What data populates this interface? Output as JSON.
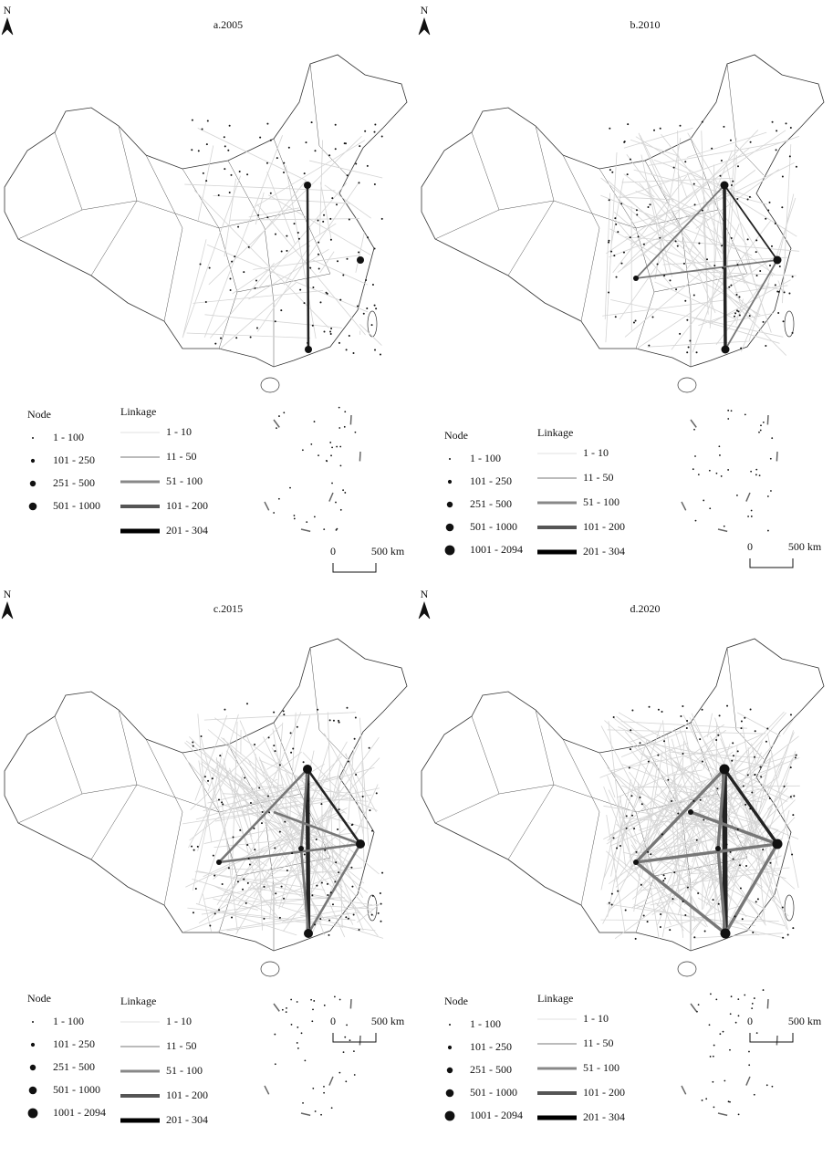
{
  "panels": [
    {
      "title": "a.2005",
      "north": "N",
      "node_legend": {
        "title": "Node",
        "items": [
          "1 - 100",
          "101 - 250",
          "251 - 500",
          "501 - 1000"
        ]
      },
      "linkage_legend": {
        "title": "Linkage",
        "items": [
          "1 - 10",
          "11 - 50",
          "51 - 100",
          "101 - 200",
          "201 - 304"
        ]
      },
      "scale": {
        "start": "0",
        "end": "500 km"
      }
    },
    {
      "title": "b.2010",
      "north": "N",
      "node_legend": {
        "title": "Node",
        "items": [
          "1 - 100",
          "101 - 250",
          "251 - 500",
          "501 - 1000",
          "1001 - 2094"
        ]
      },
      "linkage_legend": {
        "title": "Linkage",
        "items": [
          "1 - 10",
          "11 - 50",
          "51 - 100",
          "101 - 200",
          "201 - 304"
        ]
      },
      "scale": {
        "start": "0",
        "end": "500 km"
      }
    },
    {
      "title": "c.2015",
      "north": "N",
      "node_legend": {
        "title": "Node",
        "items": [
          "1 - 100",
          "101 - 250",
          "251 - 500",
          "501 - 1000",
          "1001 - 2094"
        ]
      },
      "linkage_legend": {
        "title": "Linkage",
        "items": [
          "1 - 10",
          "11 - 50",
          "51 - 100",
          "101 - 200",
          "201 - 304"
        ]
      },
      "scale": {
        "start": "0",
        "end": "500 km"
      }
    },
    {
      "title": "d.2020",
      "north": "N",
      "node_legend": {
        "title": "Node",
        "items": [
          "1 - 100",
          "101 - 250",
          "251 - 500",
          "501 - 1000",
          "1001 - 2094"
        ]
      },
      "linkage_legend": {
        "title": "Linkage",
        "items": [
          "1 - 10",
          "11 - 50",
          "51 - 100",
          "101 - 200",
          "201 - 304"
        ]
      },
      "scale": {
        "start": "0",
        "end": "500 km"
      }
    }
  ]
}
